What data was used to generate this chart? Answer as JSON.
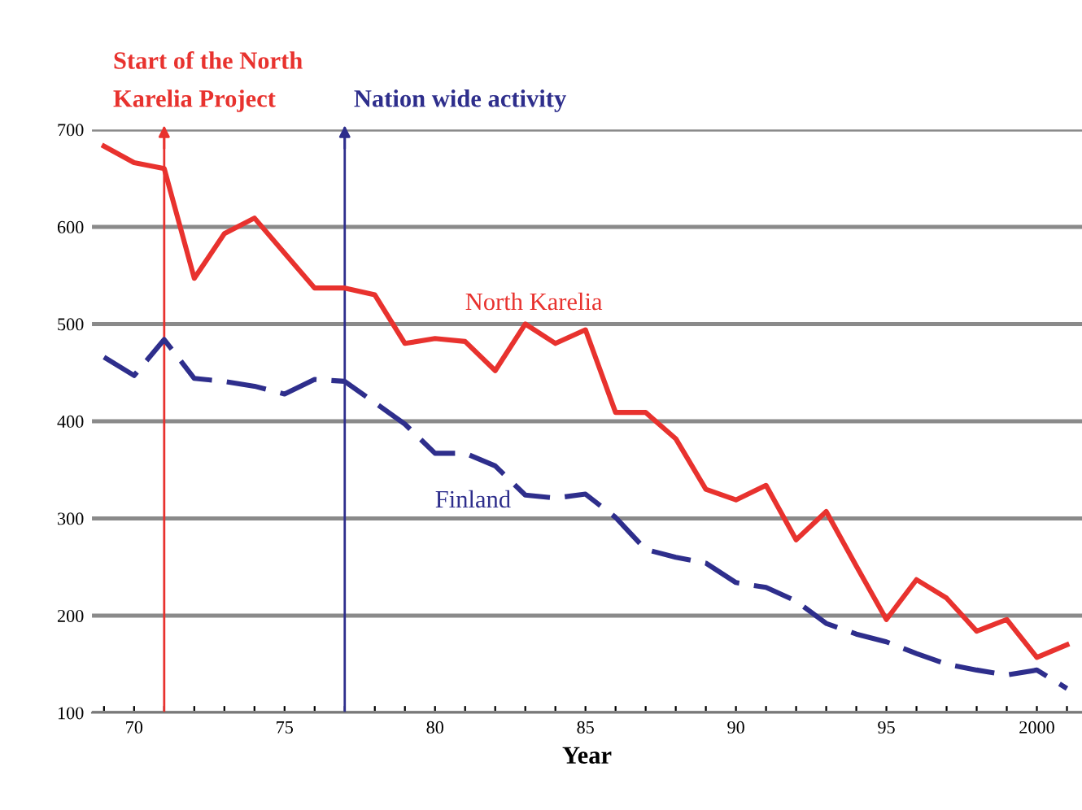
{
  "chart_data": {
    "type": "line",
    "xlabel": "Year",
    "x": [
      1969,
      1970,
      1971,
      1972,
      1973,
      1974,
      1975,
      1976,
      1977,
      1978,
      1979,
      1980,
      1981,
      1982,
      1983,
      1984,
      1985,
      1986,
      1987,
      1988,
      1989,
      1990,
      1991,
      1992,
      1993,
      1994,
      1995,
      1996,
      1997,
      1998,
      1999,
      2000,
      2001
    ],
    "series": [
      {
        "name": "North Karelia",
        "color": "#e8322e",
        "line_style": "solid",
        "values": [
          683,
          666,
          660,
          547,
          593,
          609,
          573,
          537,
          537,
          530,
          480,
          485,
          482,
          452,
          500,
          480,
          494,
          409,
          409,
          382,
          330,
          319,
          334,
          278,
          307,
          251,
          196,
          237,
          218,
          184,
          196,
          157,
          170
        ]
      },
      {
        "name": "Finland",
        "color": "#2e2e8c",
        "line_style": "dashed",
        "values": [
          466,
          447,
          484,
          444,
          441,
          436,
          428,
          443,
          441,
          419,
          397,
          367,
          367,
          354,
          324,
          321,
          325,
          301,
          268,
          260,
          254,
          234,
          229,
          215,
          192,
          181,
          173,
          161,
          150,
          144,
          139,
          144,
          125
        ]
      }
    ],
    "xlim": [
      1968.6,
      2001.5
    ],
    "ylim": [
      100,
      700
    ],
    "xticks": [
      {
        "value": 1969,
        "label": null
      },
      {
        "value": 1970,
        "label": "70"
      },
      {
        "value": 1971,
        "label": null
      },
      {
        "value": 1972,
        "label": null
      },
      {
        "value": 1973,
        "label": null
      },
      {
        "value": 1974,
        "label": null
      },
      {
        "value": 1975,
        "label": "75"
      },
      {
        "value": 1976,
        "label": null
      },
      {
        "value": 1977,
        "label": null
      },
      {
        "value": 1978,
        "label": null
      },
      {
        "value": 1979,
        "label": null
      },
      {
        "value": 1980,
        "label": "80"
      },
      {
        "value": 1981,
        "label": null
      },
      {
        "value": 1982,
        "label": null
      },
      {
        "value": 1983,
        "label": null
      },
      {
        "value": 1984,
        "label": null
      },
      {
        "value": 1985,
        "label": "85"
      },
      {
        "value": 1986,
        "label": null
      },
      {
        "value": 1987,
        "label": null
      },
      {
        "value": 1988,
        "label": null
      },
      {
        "value": 1989,
        "label": null
      },
      {
        "value": 1990,
        "label": "90"
      },
      {
        "value": 1991,
        "label": null
      },
      {
        "value": 1992,
        "label": null
      },
      {
        "value": 1993,
        "label": null
      },
      {
        "value": 1994,
        "label": null
      },
      {
        "value": 1995,
        "label": "95"
      },
      {
        "value": 1996,
        "label": null
      },
      {
        "value": 1997,
        "label": null
      },
      {
        "value": 1998,
        "label": null
      },
      {
        "value": 1999,
        "label": null
      },
      {
        "value": 2000,
        "label": "2000"
      },
      {
        "value": 2001,
        "label": null
      }
    ],
    "yticks": [
      100,
      200,
      300,
      400,
      500,
      600,
      700
    ],
    "grid": "y",
    "marker": "none",
    "legend": false,
    "ref_lines": [
      {
        "axis": "x",
        "value": 1971,
        "label": "Start of the North\nKarelia Project",
        "color": "#e8322e"
      },
      {
        "axis": "x",
        "value": 1977,
        "label": "Nation wide activity",
        "color": "#2e2e8c"
      }
    ]
  }
}
